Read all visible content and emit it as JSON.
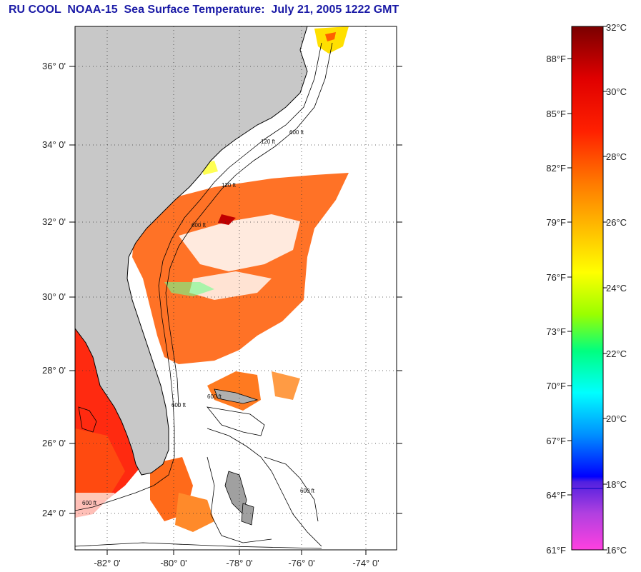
{
  "title": "RU COOL  NOAA-15  Sea Surface Temperature:  July 21, 2005 1222 GMT",
  "map": {
    "lat_labels": [
      "36° 0'",
      "34° 0'",
      "32° 0'",
      "30° 0'",
      "28° 0'",
      "26° 0'",
      "24° 0'"
    ],
    "lon_labels": [
      "-82° 0'",
      "-80° 0'",
      "-78° 0'",
      "-76° 0'",
      "-74° 0'"
    ],
    "contour_labels": [
      "120 ft",
      "600 ft",
      "600 ft",
      "600 ft",
      "600 ft",
      "120 ft",
      "600 ft",
      "600 ft"
    ],
    "land_color": "#c8c8c8",
    "ocean_cloud_color": "#ffffff"
  },
  "colorbar": {
    "celsius_labels": [
      "32°C",
      "30°C",
      "28°C",
      "26°C",
      "24°C",
      "22°C",
      "20°C",
      "18°C",
      "16°C"
    ],
    "fahrenheit_labels": [
      "88°F",
      "85°F",
      "82°F",
      "79°F",
      "76°F",
      "73°F",
      "70°F",
      "67°F",
      "64°F",
      "61°F"
    ],
    "colors_top_to_bottom": [
      "#8b0000",
      "#ff0000",
      "#ff6a00",
      "#ffd000",
      "#ffff00",
      "#80ff00",
      "#00ff60",
      "#00ffff",
      "#0090ff",
      "#0000ff",
      "#8040d0",
      "#ff40ff"
    ]
  }
}
